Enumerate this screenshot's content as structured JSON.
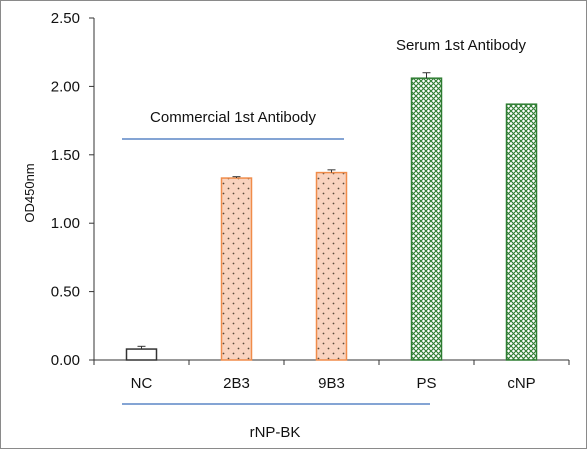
{
  "chart_data": {
    "type": "bar",
    "title": "",
    "xlabel": "",
    "ylabel": "OD450nm",
    "ylim": [
      0,
      2.5
    ],
    "yticks": [
      "0.00",
      "0.50",
      "1.00",
      "1.50",
      "2.00",
      "2.50"
    ],
    "ytick_values": [
      0,
      0.5,
      1.0,
      1.5,
      2.0,
      2.5
    ],
    "grid": false,
    "categories": [
      "NC",
      "2B3",
      "9B3",
      "PS",
      "cNP"
    ],
    "values": [
      0.08,
      1.33,
      1.37,
      2.06,
      1.87
    ],
    "errors": [
      0.02,
      0.01,
      0.02,
      0.04,
      0
    ],
    "bar_styles": [
      {
        "fill": "#ffffff",
        "stroke": "#333333",
        "pattern": "none"
      },
      {
        "fill": "#f9d3bf",
        "stroke": "#f08c4a",
        "pattern": "dots"
      },
      {
        "fill": "#f9d3bf",
        "stroke": "#f08c4a",
        "pattern": "dots"
      },
      {
        "fill": "#ffffff",
        "stroke": "#2e7d32",
        "pattern": "crosshatch"
      },
      {
        "fill": "#ffffff",
        "stroke": "#2e7d32",
        "pattern": "crosshatch"
      }
    ],
    "annotations": {
      "commercial": "Commercial 1st Antibody",
      "serum": "Serum 1st Antibody",
      "group_label": "rNP-BK"
    },
    "bracket_color": "#5b86c5"
  }
}
